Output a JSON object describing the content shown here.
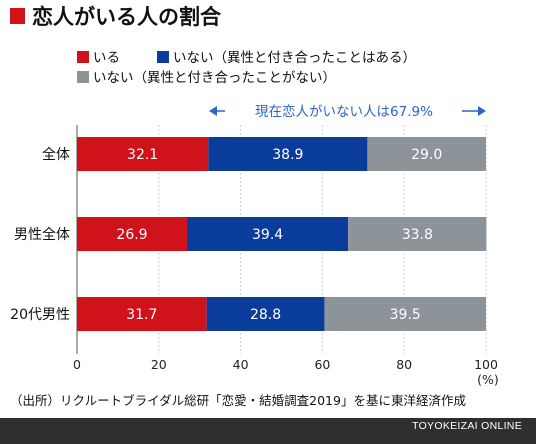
{
  "title": "恋人がいる人の割合",
  "legend": [
    {
      "label": "いる",
      "color": "#d0121b"
    },
    {
      "label": "いない（異性と付き合ったことはある）",
      "color": "#0a3c9c"
    },
    {
      "label": "いない（異性と付き合ったことがない）",
      "color": "#8c9499"
    }
  ],
  "annotation": "現在恋人がいない人は67.9%",
  "source": "（出所）リクルートブライダル総研「恋愛・結婚調査2019」を基に東洋経済作成",
  "footer": "TOYOKEIZAI ONLINE",
  "colors": {
    "title_square": "#d0121b",
    "annotation": "#2d64c8",
    "footer_bg": "#2f2f2f"
  },
  "chart_data": {
    "type": "bar",
    "orientation": "horizontal",
    "stacked": true,
    "categories": [
      "全体",
      "男性全体",
      "20代男性"
    ],
    "series": [
      {
        "name": "いる",
        "values": [
          32.1,
          26.9,
          31.7
        ]
      },
      {
        "name": "いない（異性と付き合ったことはある）",
        "values": [
          38.9,
          39.4,
          28.8
        ]
      },
      {
        "name": "いない（異性と付き合ったことがない）",
        "values": [
          29.0,
          33.8,
          39.5
        ]
      }
    ],
    "xlim": [
      0,
      100
    ],
    "xticks": [
      "0",
      "20",
      "40",
      "60",
      "80",
      "100"
    ],
    "xunit": "(%)",
    "grid": true,
    "legend_position": "top"
  }
}
